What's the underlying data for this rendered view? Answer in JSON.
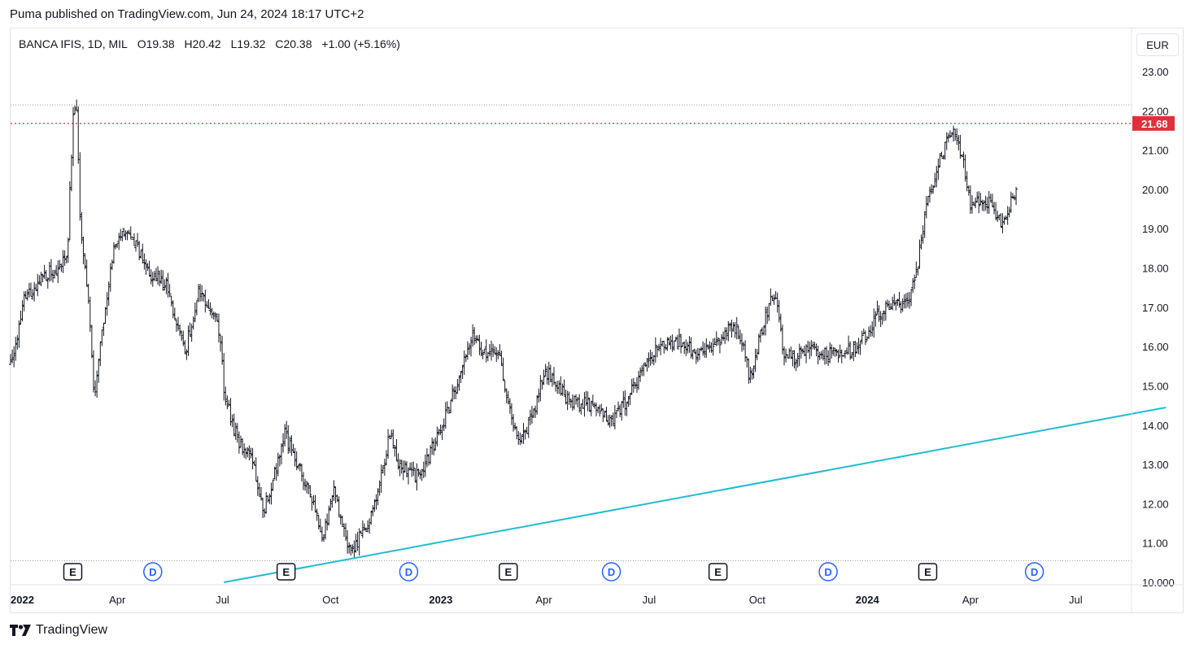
{
  "header": {
    "publish_line": "Puma published on TradingView.com, Jun 24, 2024 18:17 UTC+2"
  },
  "legend": {
    "symbol": "BANCA IFIS, 1D, MIL",
    "open_label": "O",
    "open": "19.38",
    "high_label": "H",
    "high": "20.42",
    "low_label": "L",
    "low": "19.32",
    "close_label": "C",
    "close": "20.38",
    "change": "+1.00 (+5.16%)"
  },
  "currency": "EUR",
  "footer": {
    "brand": "TradingView"
  },
  "colors": {
    "bars": "#131722",
    "trendline": "#1fbcd2",
    "price_line": "#e0303b",
    "price_label_bg": "#e0303b",
    "event_earnings": "#131722",
    "event_dividend": "#2962ff",
    "gridline_dotted": "#9598a1"
  },
  "chart_data": {
    "type": "ohlc",
    "symbol": "BANCA IFIS",
    "interval": "1D",
    "exchange": "MIL",
    "currency": "EUR",
    "y_axis": {
      "ticks": [
        "23.00",
        "22.00",
        "21.00",
        "20.00",
        "19.00",
        "18.00",
        "17.00",
        "16.00",
        "15.00",
        "14.00",
        "13.00",
        "12.00",
        "11.00",
        "10.000"
      ],
      "range": [
        10.0,
        23.4
      ]
    },
    "x_axis": {
      "ticks": [
        {
          "label": "2022",
          "bold": true,
          "t": 0
        },
        {
          "label": "Apr",
          "bold": false,
          "t": 3
        },
        {
          "label": "Jul",
          "bold": false,
          "t": 6
        },
        {
          "label": "Oct",
          "bold": false,
          "t": 9
        },
        {
          "label": "2023",
          "bold": true,
          "t": 12
        },
        {
          "label": "Apr",
          "bold": false,
          "t": 15
        },
        {
          "label": "Jul",
          "bold": false,
          "t": 18
        },
        {
          "label": "Oct",
          "bold": false,
          "t": 21
        },
        {
          "label": "2024",
          "bold": true,
          "t": 24
        },
        {
          "label": "Apr",
          "bold": false,
          "t": 27
        },
        {
          "label": "Jul",
          "bold": false,
          "t": 30
        }
      ],
      "unit": "months since Jan 2022"
    },
    "last_price": {
      "value": 21.68,
      "label": "21.68"
    },
    "horizontal_levels": [
      22.15,
      10.55
    ],
    "trendline": {
      "start": {
        "t": 6.0,
        "price": 10.0
      },
      "end": {
        "t": 32.5,
        "price": 14.45
      }
    },
    "series_anchor_points": [
      [
        0.0,
        15.6
      ],
      [
        0.4,
        17.2
      ],
      [
        0.8,
        17.7
      ],
      [
        1.3,
        18.0
      ],
      [
        1.6,
        18.4
      ],
      [
        1.75,
        21.8
      ],
      [
        1.85,
        22.1
      ],
      [
        1.95,
        19.5
      ],
      [
        2.05,
        18.2
      ],
      [
        2.2,
        17.2
      ],
      [
        2.35,
        14.8
      ],
      [
        2.6,
        16.5
      ],
      [
        2.9,
        18.6
      ],
      [
        3.2,
        19.0
      ],
      [
        3.5,
        18.6
      ],
      [
        3.9,
        17.9
      ],
      [
        4.4,
        17.5
      ],
      [
        4.9,
        15.8
      ],
      [
        5.3,
        17.5
      ],
      [
        5.6,
        17.0
      ],
      [
        5.9,
        16.3
      ],
      [
        6.0,
        14.8
      ],
      [
        6.4,
        13.6
      ],
      [
        6.8,
        13.2
      ],
      [
        7.1,
        11.8
      ],
      [
        7.5,
        13.0
      ],
      [
        7.7,
        13.8
      ],
      [
        8.0,
        13.2
      ],
      [
        8.4,
        12.2
      ],
      [
        8.8,
        11.2
      ],
      [
        9.1,
        12.4
      ],
      [
        9.4,
        11.2
      ],
      [
        9.6,
        10.8
      ],
      [
        10.0,
        11.4
      ],
      [
        10.4,
        12.6
      ],
      [
        10.7,
        13.9
      ],
      [
        10.9,
        13.1
      ],
      [
        11.2,
        12.8
      ],
      [
        11.5,
        12.7
      ],
      [
        11.9,
        13.5
      ],
      [
        12.3,
        14.4
      ],
      [
        12.7,
        15.4
      ],
      [
        13.0,
        16.4
      ],
      [
        13.4,
        15.7
      ],
      [
        13.7,
        15.9
      ],
      [
        14.0,
        14.5
      ],
      [
        14.3,
        13.6
      ],
      [
        14.7,
        14.2
      ],
      [
        15.0,
        15.4
      ],
      [
        15.4,
        15.1
      ],
      [
        15.7,
        14.6
      ],
      [
        16.1,
        14.6
      ],
      [
        16.5,
        14.4
      ],
      [
        16.9,
        14.1
      ],
      [
        17.3,
        14.6
      ],
      [
        17.7,
        15.2
      ],
      [
        18.1,
        15.9
      ],
      [
        18.5,
        16.1
      ],
      [
        18.9,
        16.1
      ],
      [
        19.3,
        15.8
      ],
      [
        19.7,
        15.9
      ],
      [
        20.1,
        16.4
      ],
      [
        20.5,
        16.4
      ],
      [
        20.8,
        15.2
      ],
      [
        21.1,
        16.3
      ],
      [
        21.4,
        17.3
      ],
      [
        21.6,
        17.1
      ],
      [
        21.7,
        15.9
      ],
      [
        22.0,
        15.7
      ],
      [
        22.4,
        15.9
      ],
      [
        22.8,
        15.8
      ],
      [
        23.2,
        15.8
      ],
      [
        23.6,
        15.9
      ],
      [
        24.0,
        16.2
      ],
      [
        24.4,
        16.9
      ],
      [
        24.8,
        17.0
      ],
      [
        25.2,
        17.1
      ],
      [
        25.5,
        18.0
      ],
      [
        25.8,
        19.8
      ],
      [
        26.1,
        20.6
      ],
      [
        26.4,
        21.3
      ],
      [
        26.6,
        21.4
      ],
      [
        26.8,
        20.7
      ],
      [
        27.0,
        19.6
      ],
      [
        27.3,
        19.8
      ],
      [
        27.6,
        19.6
      ],
      [
        27.9,
        19.1
      ],
      [
        28.1,
        19.6
      ],
      [
        28.3,
        20.0
      ]
    ]
  },
  "events": [
    {
      "type": "E",
      "t": 1.75
    },
    {
      "type": "D",
      "t": 4.0
    },
    {
      "type": "E",
      "t": 7.75
    },
    {
      "type": "D",
      "t": 11.2
    },
    {
      "type": "E",
      "t": 14.0
    },
    {
      "type": "D",
      "t": 16.9
    },
    {
      "type": "E",
      "t": 19.9
    },
    {
      "type": "D",
      "t": 23.0
    },
    {
      "type": "E",
      "t": 25.8
    },
    {
      "type": "D",
      "t": 28.8
    }
  ]
}
